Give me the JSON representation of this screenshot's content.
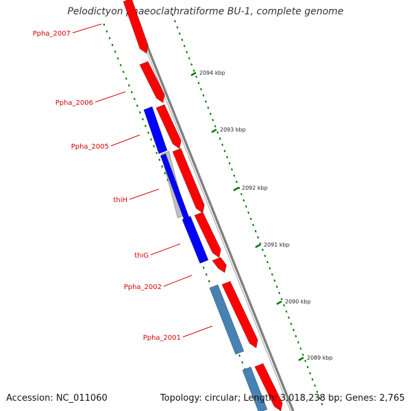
{
  "title": "Pelodictyon phaeoclathratiforme BU-1, complete genome",
  "accession": "Accession: NC_011060",
  "summary": "Topology: circular; Length: 3,018,238 bp; Genes: 2,765",
  "colors": {
    "forward_gene": "#ff0000",
    "reverse_gene": "#0000ff",
    "reverse_gene_alt": "#4682b4",
    "pseudo_gene": "#c0c0c0",
    "backbone": "#808080",
    "tick": "#007700",
    "label": "#d40000"
  },
  "gene_labels": [
    "Ppha_2007",
    "Ppha_2006",
    "Ppha_2005",
    "thiH",
    "thiG",
    "Ppha_2002",
    "Ppha_2001"
  ],
  "ticks": [
    "2094 kbp",
    "2093 kbp",
    "2092 kbp",
    "2091 kbp",
    "2090 kbp",
    "2089 kbp"
  ]
}
